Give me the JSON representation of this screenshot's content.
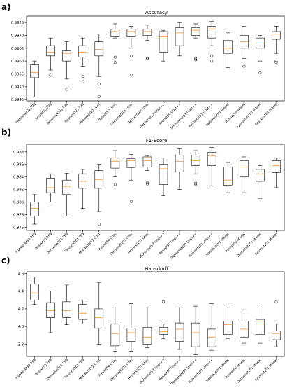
{
  "chart_data": [
    {
      "type": "boxplot",
      "panel_label": "a)",
      "title": "Accuracy",
      "ylim": [
        0.99445,
        0.99775
      ],
      "yticks": [
        "0.9945",
        "0.9950",
        "0.9955",
        "0.9960",
        "0.9965",
        "0.9970",
        "0.9975"
      ],
      "ytick_values": [
        0.9945,
        0.995,
        0.9955,
        0.996,
        0.9965,
        0.997,
        0.9975
      ],
      "categories": [
        "MobilenetV2 FPN",
        "Resnet50 FPN",
        "Densenet201 FPN",
        "Resnext101 FPN",
        "MobilenetV2 Unet",
        "Resnet50 Unet",
        "Densenet201 Unet",
        "Resnext101 Unet",
        "MobilenetV2 Unet++",
        "Resnet50 Unet++",
        "Densenet201 Unet++",
        "Resnext101 Unet++",
        "MobilenetV2 MAnet",
        "Resnet50 MAnet",
        "Densenet201 MAnet",
        "Resnext101 MAnet"
      ],
      "boxes": [
        {
          "whislo": 0.9946,
          "q1": 0.99535,
          "med": 0.99555,
          "q3": 0.99585,
          "whishi": 0.996,
          "fliers": []
        },
        {
          "whislo": 0.99565,
          "q1": 0.9962,
          "med": 0.99635,
          "q3": 0.9966,
          "whishi": 0.9969,
          "fliers": [
            0.99547,
            0.99545
          ]
        },
        {
          "whislo": 0.9953,
          "q1": 0.996,
          "med": 0.9963,
          "q3": 0.9964,
          "whishi": 0.99675,
          "fliers": [
            0.9949
          ]
        },
        {
          "whislo": 0.9958,
          "q1": 0.99615,
          "med": 0.99635,
          "q3": 0.9966,
          "whishi": 0.9969,
          "fliers": [
            0.9954,
            0.9952
          ]
        },
        {
          "whislo": 0.9954,
          "q1": 0.9962,
          "med": 0.99645,
          "q3": 0.99675,
          "whishi": 0.99705,
          "fliers": [
            0.9951,
            0.99462
          ]
        },
        {
          "whislo": 0.9969,
          "q1": 0.99695,
          "med": 0.99715,
          "q3": 0.99725,
          "whishi": 0.99745,
          "fliers": [
            0.99615,
            0.99595
          ]
        },
        {
          "whislo": 0.9965,
          "q1": 0.99695,
          "med": 0.99715,
          "q3": 0.99725,
          "whishi": 0.99735,
          "fliers": [
            0.9962,
            0.99545
          ]
        },
        {
          "whislo": 0.9968,
          "q1": 0.997,
          "med": 0.99715,
          "q3": 0.99725,
          "whishi": 0.9974,
          "fliers": [
            0.99612,
            0.99608
          ]
        },
        {
          "whislo": 0.996,
          "q1": 0.99635,
          "med": 0.99695,
          "q3": 0.99715,
          "whishi": 0.9972,
          "fliers": []
        },
        {
          "whislo": 0.9962,
          "q1": 0.9966,
          "med": 0.9971,
          "q3": 0.9973,
          "whishi": 0.9975,
          "fliers": []
        },
        {
          "whislo": 0.9969,
          "q1": 0.997,
          "med": 0.9972,
          "q3": 0.9973,
          "whishi": 0.99745,
          "fliers": [
            0.9961,
            0.99605
          ]
        },
        {
          "whislo": 0.9966,
          "q1": 0.9969,
          "med": 0.99725,
          "q3": 0.99735,
          "whishi": 0.99755,
          "fliers": [
            0.9962,
            0.996
          ]
        },
        {
          "whislo": 0.99575,
          "q1": 0.9963,
          "med": 0.9965,
          "q3": 0.9968,
          "whishi": 0.9971,
          "fliers": []
        },
        {
          "whislo": 0.9961,
          "q1": 0.9965,
          "med": 0.99675,
          "q3": 0.997,
          "whishi": 0.99735,
          "fliers": [
            0.9958
          ]
        },
        {
          "whislo": 0.996,
          "q1": 0.9965,
          "med": 0.9967,
          "q3": 0.9969,
          "whishi": 0.997,
          "fliers": [
            0.99555
          ]
        },
        {
          "whislo": 0.9963,
          "q1": 0.99685,
          "med": 0.99705,
          "q3": 0.99715,
          "whishi": 0.99735,
          "fliers": [
            0.996,
            0.99595
          ]
        }
      ]
    },
    {
      "type": "boxplot",
      "panel_label": "b)",
      "title": "F1-Score",
      "ylim": [
        0.9755,
        0.9892
      ],
      "yticks": [
        "0.976",
        "0.978",
        "0.980",
        "0.982",
        "0.984",
        "0.986",
        "0.988"
      ],
      "ytick_values": [
        0.976,
        0.978,
        0.98,
        0.982,
        0.984,
        0.986,
        0.988
      ],
      "categories": [
        "MobilenetV2 FPN",
        "Resnet50 FPN",
        "Densenet201 FPN",
        "Resnext101 FPN",
        "MobilenetV2 Unet",
        "Resnet50 Unet",
        "Densenet201 Unet",
        "Resnext101 Unet",
        "MobilenetV2 Unet++",
        "Resnet50 Unet++",
        "Densenet201 Unet++",
        "Resnext101 Unet++",
        "MobilenetV2 MAnet",
        "Resnet50 MAnet",
        "Densenet201 MAnet",
        "Resnext101 MAnet"
      ],
      "boxes": [
        {
          "whislo": 0.9765,
          "q1": 0.9778,
          "med": 0.979,
          "q3": 0.98,
          "whishi": 0.9812,
          "fliers": []
        },
        {
          "whislo": 0.98,
          "q1": 0.9815,
          "med": 0.9823,
          "q3": 0.9838,
          "whishi": 0.9845,
          "fliers": []
        },
        {
          "whislo": 0.9778,
          "q1": 0.9812,
          "med": 0.9825,
          "q3": 0.9835,
          "whishi": 0.9846,
          "fliers": []
        },
        {
          "whislo": 0.979,
          "q1": 0.9822,
          "med": 0.9833,
          "q3": 0.9845,
          "whishi": 0.9852,
          "fliers": []
        },
        {
          "whislo": 0.9785,
          "q1": 0.9822,
          "med": 0.9836,
          "q3": 0.985,
          "whishi": 0.986,
          "fliers": [
            0.9765
          ]
        },
        {
          "whislo": 0.984,
          "q1": 0.9854,
          "med": 0.9865,
          "q3": 0.987,
          "whishi": 0.9882,
          "fliers": [
            0.9828
          ]
        },
        {
          "whislo": 0.9835,
          "q1": 0.9855,
          "med": 0.9866,
          "q3": 0.9869,
          "whishi": 0.9876,
          "fliers": [
            0.9801
          ]
        },
        {
          "whislo": 0.985,
          "q1": 0.9856,
          "med": 0.9866,
          "q3": 0.9872,
          "whishi": 0.9874,
          "fliers": [
            0.9831,
            0.9829
          ]
        },
        {
          "whislo": 0.981,
          "q1": 0.9828,
          "med": 0.9853,
          "q3": 0.986,
          "whishi": 0.987,
          "fliers": []
        },
        {
          "whislo": 0.982,
          "q1": 0.9848,
          "med": 0.9865,
          "q3": 0.9875,
          "whishi": 0.9885,
          "fliers": []
        },
        {
          "whislo": 0.9845,
          "q1": 0.9858,
          "med": 0.9866,
          "q3": 0.9875,
          "whishi": 0.9882,
          "fliers": [
            0.983,
            0.9828
          ]
        },
        {
          "whislo": 0.9826,
          "q1": 0.9858,
          "med": 0.9874,
          "q3": 0.9879,
          "whishi": 0.9887,
          "fliers": []
        },
        {
          "whislo": 0.9815,
          "q1": 0.9827,
          "med": 0.9835,
          "q3": 0.9856,
          "whishi": 0.9863,
          "fliers": []
        },
        {
          "whislo": 0.9815,
          "q1": 0.984,
          "med": 0.9856,
          "q3": 0.9866,
          "whishi": 0.9872,
          "fliers": []
        },
        {
          "whislo": 0.9806,
          "q1": 0.9833,
          "med": 0.9845,
          "q3": 0.9852,
          "whishi": 0.9858,
          "fliers": []
        },
        {
          "whislo": 0.9823,
          "q1": 0.9847,
          "med": 0.9858,
          "q3": 0.9866,
          "whishi": 0.987,
          "fliers": []
        }
      ]
    },
    {
      "type": "boxplot",
      "panel_label": "c)",
      "title": "Hausdorff",
      "ylim": [
        3.66,
        4.62
      ],
      "yticks": [
        "3.8",
        "4.0",
        "4.2",
        "4.4",
        "4.6"
      ],
      "ytick_values": [
        3.8,
        4.0,
        4.2,
        4.4,
        4.6
      ],
      "categories": [
        "MobilenetV2 FPN",
        "Resnet50 FPN",
        "Densenet201 FPN",
        "Resnext101 FPN",
        "MobilenetV2 Unet",
        "Resnet50 Unet",
        "Densenet201 Unet",
        "Resnext101 Unet",
        "MobilenetV2 Unet++",
        "Resnet50 Unet++",
        "Densenet201 Unet++",
        "Resnext101 Unet++",
        "MobilenetV2 MAnet",
        "Resnet50 MAnet",
        "Densenet201 MAnet",
        "Resnext101 MAnet"
      ],
      "boxes": [
        {
          "whislo": 4.25,
          "q1": 4.3,
          "med": 4.38,
          "q3": 4.48,
          "whishi": 4.56,
          "fliers": []
        },
        {
          "whislo": 3.93,
          "q1": 4.1,
          "med": 4.18,
          "q3": 4.27,
          "whishi": 4.4,
          "fliers": []
        },
        {
          "whislo": 4.02,
          "q1": 4.1,
          "med": 4.18,
          "q3": 4.28,
          "whishi": 4.47,
          "fliers": []
        },
        {
          "whislo": 4.03,
          "q1": 4.08,
          "med": 4.15,
          "q3": 4.25,
          "whishi": 4.3,
          "fliers": []
        },
        {
          "whislo": 3.8,
          "q1": 3.98,
          "med": 4.1,
          "q3": 4.2,
          "whishi": 4.5,
          "fliers": []
        },
        {
          "whislo": 3.72,
          "q1": 3.78,
          "med": 3.92,
          "q3": 4.03,
          "whishi": 4.22,
          "fliers": []
        },
        {
          "whislo": 3.72,
          "q1": 3.83,
          "med": 3.93,
          "q3": 3.98,
          "whishi": 4.26,
          "fliers": []
        },
        {
          "whislo": 3.76,
          "q1": 3.8,
          "med": 3.88,
          "q3": 3.99,
          "whishi": 4.22,
          "fliers": []
        },
        {
          "whislo": 3.86,
          "q1": 3.91,
          "med": 3.94,
          "q3": 3.99,
          "whishi": 4.03,
          "fliers": [
            4.28
          ]
        },
        {
          "whislo": 3.74,
          "q1": 3.83,
          "med": 3.97,
          "q3": 4.04,
          "whishi": 4.22,
          "fliers": []
        },
        {
          "whislo": 3.68,
          "q1": 3.77,
          "med": 3.93,
          "q3": 4.04,
          "whishi": 4.23,
          "fliers": []
        },
        {
          "whislo": 3.73,
          "q1": 3.77,
          "med": 3.88,
          "q3": 3.97,
          "whishi": 4.26,
          "fliers": []
        },
        {
          "whislo": 3.86,
          "q1": 3.91,
          "med": 4.02,
          "q3": 4.06,
          "whishi": 4.22,
          "fliers": []
        },
        {
          "whislo": 3.81,
          "q1": 3.88,
          "med": 3.97,
          "q3": 4.06,
          "whishi": 4.19,
          "fliers": []
        },
        {
          "whislo": 3.81,
          "q1": 3.91,
          "med": 4.03,
          "q3": 4.08,
          "whishi": 4.22,
          "fliers": []
        },
        {
          "whislo": 3.77,
          "q1": 3.85,
          "med": 3.92,
          "q3": 3.95,
          "whishi": 4.03,
          "fliers": [
            4.28
          ]
        }
      ]
    }
  ],
  "colors": {
    "median": "#f28e2b",
    "box": "#000000"
  }
}
